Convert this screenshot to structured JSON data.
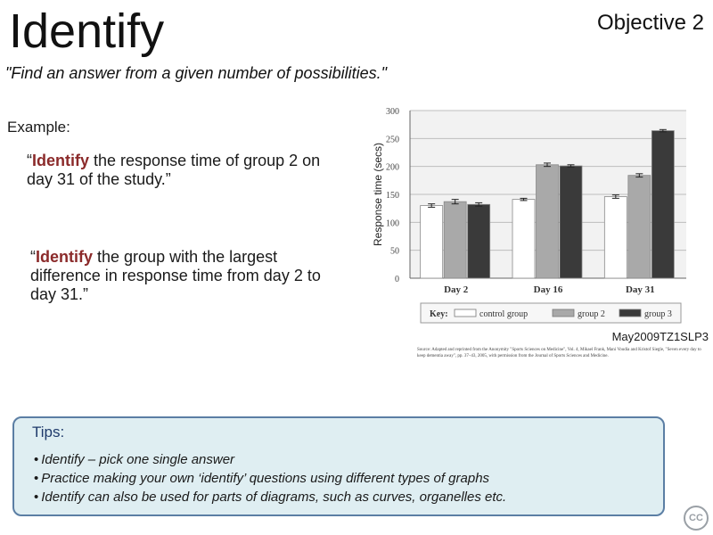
{
  "header": {
    "title": "Identify",
    "objective": "Objective 2",
    "subtitle": "\"Find an answer from a given number of possibilities.\""
  },
  "example": {
    "label": "Example:",
    "q1": {
      "open": "“",
      "keyword": "Identify",
      "rest": " the response time of group 2 on day 31 of the study.”"
    },
    "q2": {
      "open": "“",
      "keyword": "Identify",
      "rest": " the group with the largest difference in response time from day 2 to day 31.”"
    }
  },
  "reference": "May2009TZ1SLP3",
  "source": "Source: Adapted and reprinted from the Anonymity \"Sports Sciences on Medicine\", Vol. 4, Mikael Frank, Mani Voudia and Kristof Siegle, \"Seven every day to keep dementia away\", pp. 37–43, 2005, with permission from the Journal of Sports Sciences and Medicine.",
  "tips": {
    "title": "Tips:",
    "items": [
      "Identify – pick one single answer",
      "Practice making your own ‘identify’ questions using different types of graphs",
      "Identify can also be used for parts of diagrams, such as curves, organelles etc."
    ]
  },
  "badge": "CC",
  "colors": {
    "control": "#ffffff",
    "group2": "#a9a9a9",
    "group3": "#3a3a3a",
    "tipsBorder": "#5b7ea4",
    "tipsBg": "#dfeef2",
    "keyword": "#8b2a2a"
  },
  "chart_data": {
    "type": "bar",
    "categories": [
      "Day 2",
      "Day 16",
      "Day 31"
    ],
    "series": [
      {
        "name": "control group",
        "values": [
          130,
          141,
          146
        ],
        "errors": [
          3,
          2,
          3
        ]
      },
      {
        "name": "group 2",
        "values": [
          137,
          203,
          184
        ],
        "errors": [
          4,
          3,
          3
        ]
      },
      {
        "name": "group 3",
        "values": [
          132,
          201,
          264
        ],
        "errors": [
          3,
          2,
          2
        ]
      }
    ],
    "ylabel": "Response time (secs)",
    "ylim": [
      0,
      300
    ],
    "yticks": [
      0,
      50,
      100,
      150,
      200,
      250,
      300
    ],
    "grid": true,
    "legend": {
      "title": "Key:",
      "position": "bottom"
    }
  }
}
